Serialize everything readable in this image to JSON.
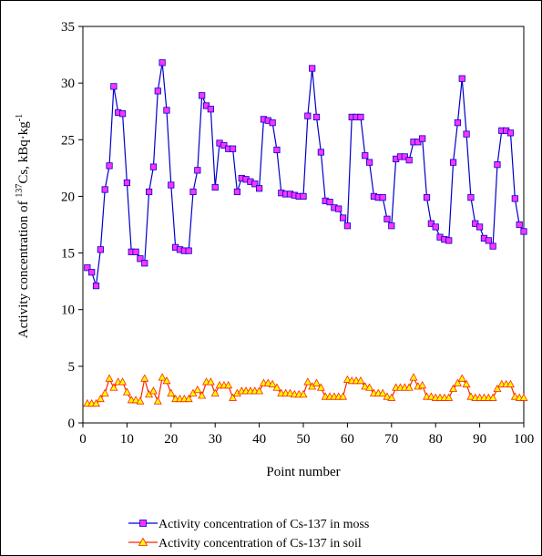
{
  "chart_data": {
    "type": "line",
    "title": "",
    "xlabel": "Point number",
    "ylabel": {
      "prefix": "Activity concentration of ",
      "sup1": "137",
      "mid": "Cs, kBq·kg",
      "sup2": "-1"
    },
    "xlim": [
      0,
      100
    ],
    "ylim": [
      0,
      35
    ],
    "xticks": [
      0,
      10,
      20,
      30,
      40,
      50,
      60,
      70,
      80,
      90,
      100
    ],
    "yticks": [
      0,
      5,
      10,
      15,
      20,
      25,
      30,
      35
    ],
    "grid": false,
    "legend_position": "bottom",
    "x": [
      1,
      2,
      3,
      4,
      5,
      6,
      7,
      8,
      9,
      10,
      11,
      12,
      13,
      14,
      15,
      16,
      17,
      18,
      19,
      20,
      21,
      22,
      23,
      24,
      25,
      26,
      27,
      28,
      29,
      30,
      31,
      32,
      33,
      34,
      35,
      36,
      37,
      38,
      39,
      40,
      41,
      42,
      43,
      44,
      45,
      46,
      47,
      48,
      49,
      50,
      51,
      52,
      53,
      54,
      55,
      56,
      57,
      58,
      59,
      60,
      61,
      62,
      63,
      64,
      65,
      66,
      67,
      68,
      69,
      70,
      71,
      72,
      73,
      74,
      75,
      76,
      77,
      78,
      79,
      80,
      81,
      82,
      83,
      84,
      85,
      86,
      87,
      88,
      89,
      90,
      91,
      92,
      93,
      94,
      95,
      96,
      97,
      98,
      99,
      100
    ],
    "series": [
      {
        "name": "Activity concentration of Cs-137 in moss",
        "color": "#0000cc",
        "marker_fill": "#ff33ff",
        "marker": "square",
        "values": [
          13.7,
          13.3,
          12.1,
          15.3,
          20.6,
          22.7,
          29.7,
          27.4,
          27.3,
          21.2,
          15.1,
          15.1,
          14.5,
          14.1,
          20.4,
          22.6,
          29.3,
          31.8,
          27.6,
          21.0,
          15.5,
          15.3,
          15.2,
          15.2,
          20.4,
          22.3,
          28.9,
          28.0,
          27.7,
          20.8,
          24.7,
          24.5,
          24.2,
          24.2,
          20.4,
          21.6,
          21.5,
          21.3,
          21.1,
          20.7,
          26.8,
          26.7,
          26.5,
          24.1,
          20.3,
          20.2,
          20.2,
          20.1,
          20.0,
          20.0,
          27.1,
          31.3,
          27.0,
          23.9,
          19.6,
          19.5,
          19.0,
          18.9,
          18.1,
          17.4,
          27.0,
          27.0,
          27.0,
          23.6,
          23.0,
          20.0,
          19.9,
          19.9,
          18.0,
          17.4,
          23.3,
          23.5,
          23.5,
          23.2,
          24.8,
          24.8,
          25.1,
          19.9,
          17.6,
          17.3,
          16.4,
          16.2,
          16.1,
          23.0,
          26.5,
          30.4,
          25.5,
          19.9,
          17.6,
          17.3,
          16.3,
          16.1,
          15.6,
          22.8,
          25.8,
          25.8,
          25.6,
          19.8,
          17.5,
          16.9
        ]
      },
      {
        "name": "Activity concentration of Cs-137 in soil",
        "color": "#ff2200",
        "marker_fill": "#ffff00",
        "marker": "triangle",
        "values": [
          1.7,
          1.7,
          1.7,
          2.1,
          2.6,
          3.9,
          3.1,
          3.6,
          3.6,
          2.7,
          2.0,
          2.0,
          1.9,
          3.9,
          2.5,
          2.8,
          1.9,
          4.0,
          3.7,
          2.6,
          2.1,
          2.1,
          2.1,
          2.1,
          2.6,
          2.9,
          2.4,
          3.6,
          3.6,
          2.6,
          3.3,
          3.3,
          3.3,
          2.2,
          2.6,
          2.8,
          2.8,
          2.8,
          2.8,
          2.8,
          3.5,
          3.5,
          3.4,
          3.1,
          2.6,
          2.6,
          2.6,
          2.5,
          2.5,
          2.5,
          3.6,
          3.2,
          3.5,
          3.1,
          2.3,
          2.3,
          2.3,
          2.3,
          2.3,
          3.8,
          3.7,
          3.7,
          3.7,
          3.2,
          3.1,
          2.6,
          2.6,
          2.6,
          2.3,
          2.2,
          3.1,
          3.1,
          3.1,
          3.1,
          4.0,
          3.2,
          3.3,
          2.3,
          2.3,
          2.2,
          2.2,
          2.2,
          2.2,
          3.0,
          3.5,
          3.9,
          3.4,
          2.3,
          2.2,
          2.2,
          2.2,
          2.2,
          2.2,
          3.0,
          3.4,
          3.4,
          3.4,
          2.3,
          2.2,
          2.2
        ]
      }
    ]
  }
}
